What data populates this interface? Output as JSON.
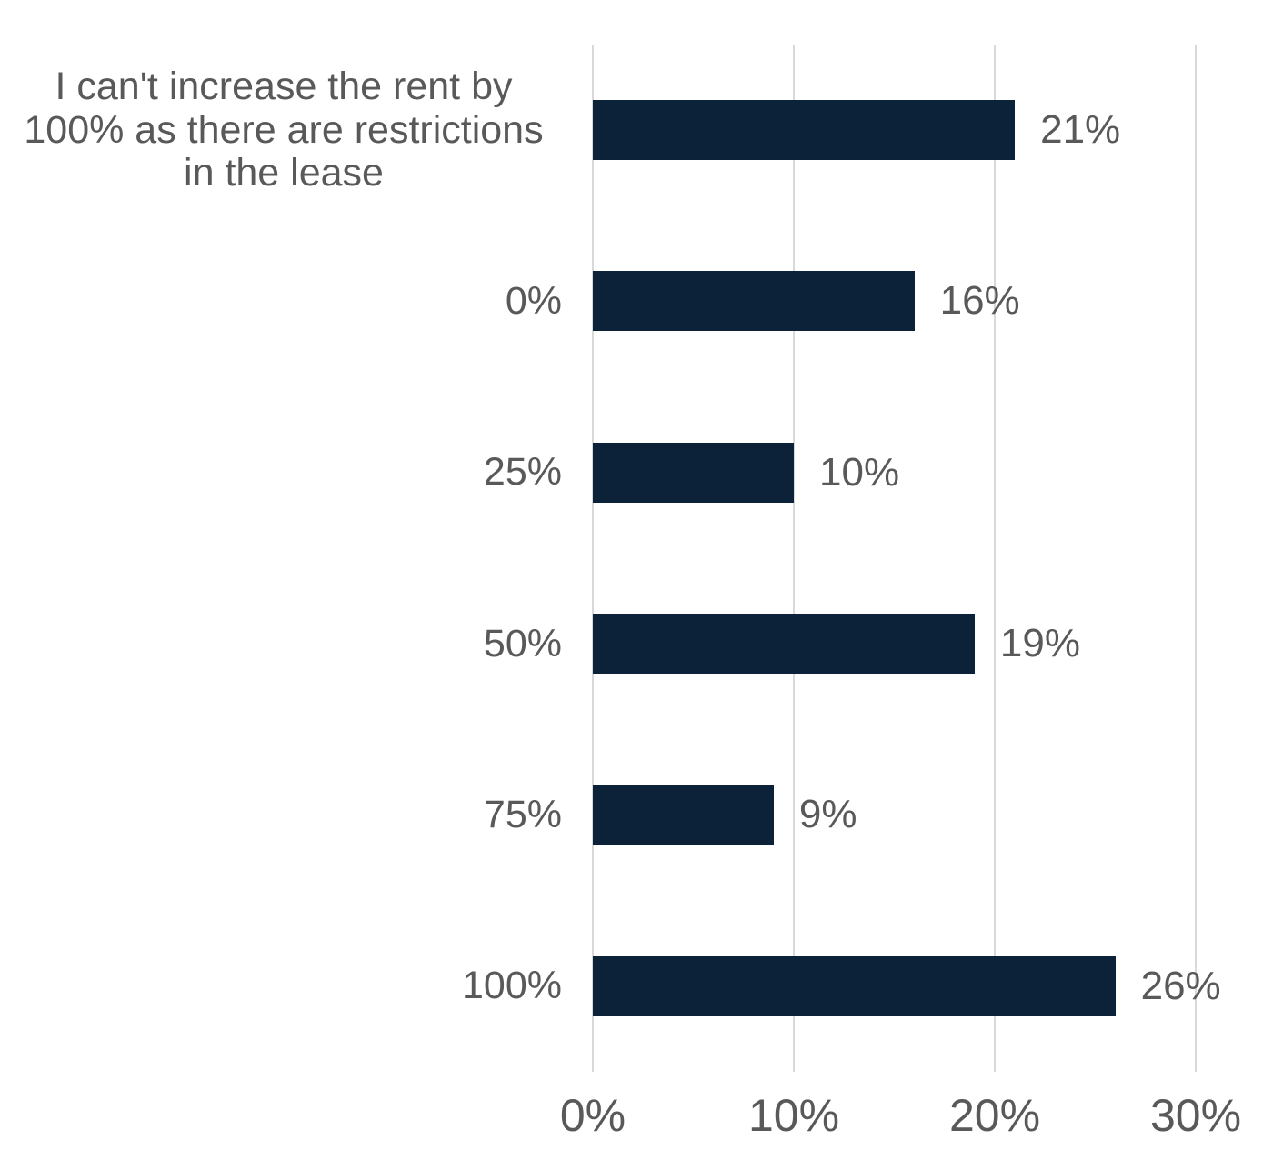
{
  "chart_data": {
    "type": "bar",
    "orientation": "horizontal",
    "title": "",
    "xlabel": "",
    "ylabel": "",
    "categories": [
      "I can't increase the rent by 100% as there are restrictions in the lease",
      "0%",
      "25%",
      "50%",
      "75%",
      "100%"
    ],
    "values": [
      21,
      16,
      10,
      19,
      9,
      26
    ],
    "value_labels": [
      "21%",
      "16%",
      "10%",
      "19%",
      "9%",
      "26%"
    ],
    "xlim": [
      0,
      30
    ],
    "x_ticks": [
      {
        "value": 0,
        "label": "0%"
      },
      {
        "value": 10,
        "label": "10%"
      },
      {
        "value": 20,
        "label": "20%"
      },
      {
        "value": 30,
        "label": "30%"
      }
    ],
    "grid": true,
    "legend_position": "none",
    "colors": {
      "bar": "#0b2239",
      "label_text": "#595959",
      "axis_text": "#595959",
      "gridline": "#d9d9d9",
      "background": "#ffffff"
    }
  }
}
